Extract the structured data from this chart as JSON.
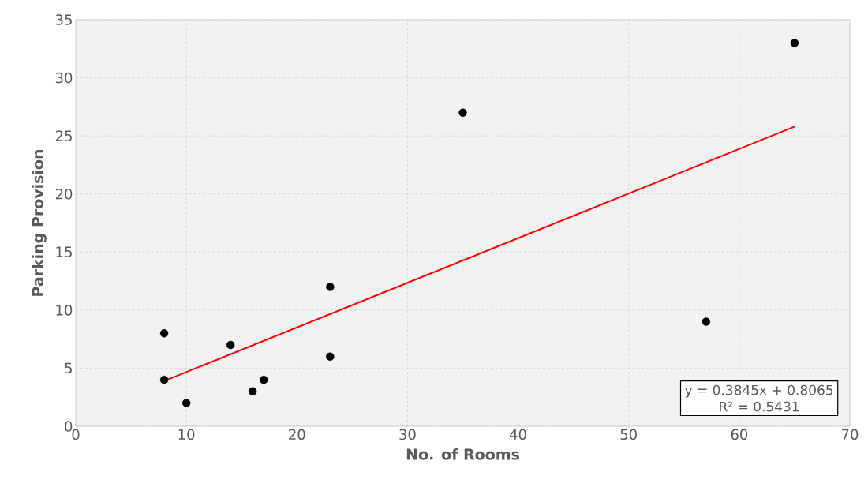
{
  "chart_data": {
    "type": "scatter",
    "xlabel": "No. of Rooms",
    "ylabel": "Parking Provision",
    "xlim": [
      0,
      70
    ],
    "ylim": [
      0,
      35
    ],
    "xticks": [
      0,
      10,
      20,
      30,
      40,
      50,
      60,
      70
    ],
    "yticks": [
      0,
      5,
      10,
      15,
      20,
      25,
      30,
      35
    ],
    "grid": true,
    "marker": "circle",
    "series": [
      {
        "color": "#000000",
        "x": [
          8,
          8,
          10,
          14,
          16,
          17,
          23,
          23,
          35,
          57,
          65
        ],
        "values": [
          8,
          4,
          2,
          7,
          3,
          4,
          12,
          6,
          27,
          9,
          33
        ]
      },
      {
        "type": "line",
        "color": "#ff0000",
        "marker": "none",
        "line_style": "solid",
        "x": [
          8,
          65
        ],
        "values": [
          3.9,
          25.8
        ]
      }
    ],
    "annotations": [
      "y = 0.3845x + 0.8065",
      "R² = 0.5431"
    ]
  }
}
